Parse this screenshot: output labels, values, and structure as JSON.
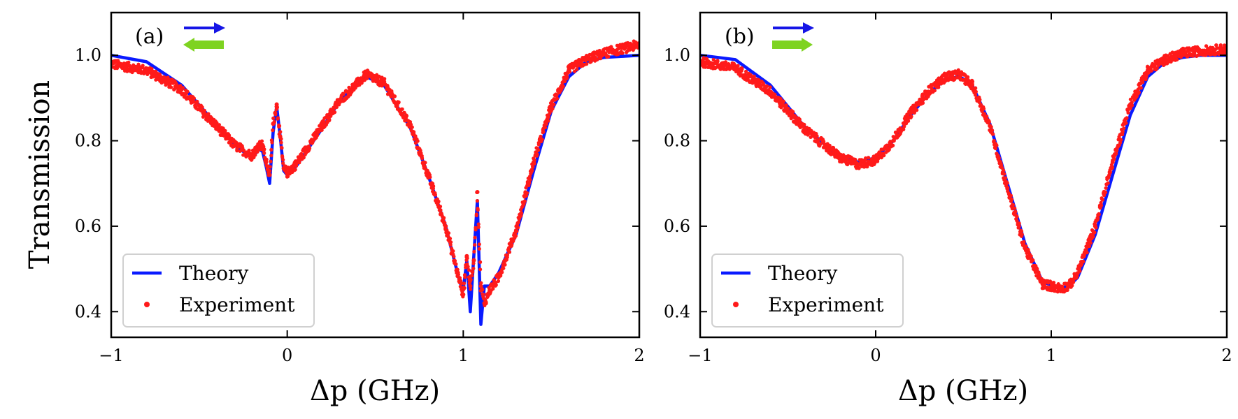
{
  "figure": {
    "ylabel": "Transmission",
    "colors": {
      "theory": "#0a1aff",
      "experiment": "#ff1a1a",
      "probe_arrow": "#1515e6",
      "coupling_arrow": "#7ed321"
    }
  },
  "chart_data": [
    {
      "type": "line",
      "panel": "(a)",
      "xlabel": "Δp (GHz)",
      "ylabel": "Transmission",
      "xlim": [
        -1,
        2
      ],
      "ylim": [
        0.34,
        1.1
      ],
      "xticks": [
        -1,
        0,
        1,
        2
      ],
      "xtick_labels": [
        "−1",
        "0",
        "1",
        "2"
      ],
      "yticks": [
        0.4,
        0.6,
        0.8,
        1.0
      ],
      "ytick_labels": [
        "0.4",
        "0.6",
        "0.8",
        "1.0"
      ],
      "legend": {
        "position": "bottom-left",
        "entries": [
          "Theory",
          "Experiment"
        ]
      },
      "arrows": [
        {
          "name": "probe",
          "direction": "right",
          "color": "#1515e6"
        },
        {
          "name": "coupling",
          "direction": "left",
          "color": "#7ed321"
        }
      ],
      "series": [
        {
          "name": "Theory",
          "x": [
            -1.0,
            -0.8,
            -0.6,
            -0.45,
            -0.3,
            -0.2,
            -0.16,
            -0.14,
            -0.12,
            -0.1,
            -0.08,
            -0.06,
            -0.04,
            -0.02,
            0.0,
            0.05,
            0.1,
            0.2,
            0.3,
            0.45,
            0.55,
            0.7,
            0.8,
            0.9,
            0.98,
            1.0,
            1.02,
            1.04,
            1.06,
            1.08,
            1.1,
            1.12,
            1.15,
            1.2,
            1.3,
            1.4,
            1.5,
            1.6,
            1.7,
            1.8,
            2.0
          ],
          "values": [
            1.0,
            0.985,
            0.93,
            0.86,
            0.79,
            0.76,
            0.78,
            0.775,
            0.74,
            0.7,
            0.82,
            0.88,
            0.81,
            0.73,
            0.72,
            0.74,
            0.77,
            0.83,
            0.895,
            0.95,
            0.93,
            0.83,
            0.72,
            0.6,
            0.47,
            0.45,
            0.52,
            0.4,
            0.53,
            0.66,
            0.37,
            0.46,
            0.46,
            0.49,
            0.58,
            0.73,
            0.87,
            0.95,
            0.985,
            0.995,
            1.0
          ]
        },
        {
          "name": "Experiment",
          "x": [
            -1.0,
            -0.8,
            -0.6,
            -0.45,
            -0.3,
            -0.2,
            -0.16,
            -0.14,
            -0.12,
            -0.1,
            -0.08,
            -0.06,
            -0.04,
            -0.02,
            0.0,
            0.05,
            0.1,
            0.2,
            0.3,
            0.45,
            0.55,
            0.7,
            0.8,
            0.9,
            0.98,
            1.0,
            1.02,
            1.04,
            1.06,
            1.08,
            1.1,
            1.12,
            1.15,
            1.2,
            1.3,
            1.4,
            1.5,
            1.6,
            1.7,
            1.8,
            2.0
          ],
          "values": [
            0.98,
            0.965,
            0.92,
            0.855,
            0.79,
            0.765,
            0.79,
            0.79,
            0.75,
            0.72,
            0.84,
            0.885,
            0.81,
            0.735,
            0.725,
            0.745,
            0.775,
            0.835,
            0.895,
            0.955,
            0.935,
            0.835,
            0.72,
            0.6,
            0.47,
            0.44,
            0.53,
            0.46,
            0.52,
            0.68,
            0.46,
            0.42,
            0.45,
            0.48,
            0.59,
            0.75,
            0.88,
            0.965,
            0.99,
            1.005,
            1.025
          ]
        }
      ]
    },
    {
      "type": "line",
      "panel": "(b)",
      "xlabel": "Δp (GHz)",
      "ylabel": "",
      "xlim": [
        -1,
        2
      ],
      "ylim": [
        0.34,
        1.1
      ],
      "xticks": [
        -1,
        0,
        1,
        2
      ],
      "xtick_labels": [
        "−1",
        "0",
        "1",
        "2"
      ],
      "yticks": [
        0.4,
        0.6,
        0.8,
        1.0
      ],
      "ytick_labels": [
        "0.4",
        "0.6",
        "0.8",
        "1.0"
      ],
      "legend": {
        "position": "bottom-left",
        "entries": [
          "Theory",
          "Experiment"
        ]
      },
      "arrows": [
        {
          "name": "probe",
          "direction": "right",
          "color": "#1515e6"
        },
        {
          "name": "coupling",
          "direction": "right",
          "color": "#7ed321"
        }
      ],
      "series": [
        {
          "name": "Theory",
          "x": [
            -1.0,
            -0.8,
            -0.6,
            -0.4,
            -0.2,
            -0.1,
            0.0,
            0.1,
            0.2,
            0.3,
            0.4,
            0.48,
            0.55,
            0.65,
            0.75,
            0.85,
            0.95,
            1.05,
            1.1,
            1.15,
            1.25,
            1.35,
            1.45,
            1.55,
            1.65,
            1.75,
            1.85,
            2.0
          ],
          "values": [
            1.0,
            0.99,
            0.93,
            0.83,
            0.76,
            0.75,
            0.76,
            0.8,
            0.86,
            0.91,
            0.945,
            0.95,
            0.93,
            0.84,
            0.7,
            0.56,
            0.47,
            0.455,
            0.46,
            0.48,
            0.58,
            0.72,
            0.86,
            0.95,
            0.985,
            0.995,
            1.0,
            1.0
          ]
        },
        {
          "name": "Experiment",
          "x": [
            -1.0,
            -0.8,
            -0.6,
            -0.4,
            -0.2,
            -0.1,
            0.0,
            0.1,
            0.2,
            0.3,
            0.4,
            0.48,
            0.55,
            0.65,
            0.75,
            0.85,
            0.95,
            1.05,
            1.1,
            1.15,
            1.25,
            1.35,
            1.45,
            1.55,
            1.65,
            1.75,
            1.85,
            2.0
          ],
          "values": [
            0.985,
            0.97,
            0.915,
            0.825,
            0.76,
            0.745,
            0.755,
            0.8,
            0.865,
            0.915,
            0.95,
            0.955,
            0.93,
            0.835,
            0.69,
            0.55,
            0.465,
            0.455,
            0.46,
            0.49,
            0.6,
            0.75,
            0.885,
            0.965,
            0.99,
            1.005,
            1.01,
            1.015
          ]
        }
      ]
    }
  ]
}
